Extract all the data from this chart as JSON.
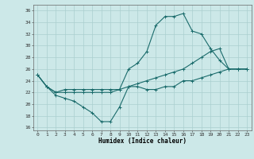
{
  "xlabel": "Humidex (Indice chaleur)",
  "background_color": "#cce8e8",
  "grid_color": "#aacfcf",
  "line_color": "#1a6b6b",
  "xlim": [
    -0.5,
    23.5
  ],
  "ylim": [
    15.5,
    37
  ],
  "yticks": [
    16,
    18,
    20,
    22,
    24,
    26,
    28,
    30,
    32,
    34,
    36
  ],
  "xticks": [
    0,
    1,
    2,
    3,
    4,
    5,
    6,
    7,
    8,
    9,
    10,
    11,
    12,
    13,
    14,
    15,
    16,
    17,
    18,
    19,
    20,
    21,
    22,
    23
  ],
  "line1_x": [
    0,
    1,
    2,
    3,
    4,
    5,
    6,
    7,
    8,
    9,
    10,
    11,
    12,
    13,
    14,
    15,
    16,
    17,
    18,
    19,
    20,
    21,
    22,
    23
  ],
  "line1_y": [
    25.0,
    23.0,
    21.5,
    21.0,
    20.5,
    19.5,
    18.5,
    17.0,
    17.0,
    19.5,
    23.0,
    23.0,
    22.5,
    22.5,
    23.0,
    23.0,
    24.0,
    24.0,
    24.5,
    25.0,
    25.5,
    26.0,
    26.0,
    26.0
  ],
  "line2_x": [
    0,
    1,
    2,
    3,
    4,
    5,
    6,
    7,
    8,
    9,
    10,
    11,
    12,
    13,
    14,
    15,
    16,
    17,
    18,
    19,
    20,
    21,
    22,
    23
  ],
  "line2_y": [
    25.0,
    23.0,
    22.0,
    22.0,
    22.0,
    22.0,
    22.0,
    22.0,
    22.0,
    22.5,
    26.0,
    27.0,
    29.0,
    33.5,
    35.0,
    35.0,
    35.5,
    32.5,
    32.0,
    29.5,
    27.5,
    26.0,
    26.0,
    26.0
  ],
  "line3_x": [
    0,
    1,
    2,
    3,
    4,
    5,
    6,
    7,
    8,
    9,
    10,
    11,
    12,
    13,
    14,
    15,
    16,
    17,
    18,
    19,
    20,
    21,
    22,
    23
  ],
  "line3_y": [
    25.0,
    23.0,
    22.0,
    22.5,
    22.5,
    22.5,
    22.5,
    22.5,
    22.5,
    22.5,
    23.0,
    23.5,
    24.0,
    24.5,
    25.0,
    25.5,
    26.0,
    27.0,
    28.0,
    29.0,
    29.5,
    26.0,
    26.0,
    26.0
  ]
}
